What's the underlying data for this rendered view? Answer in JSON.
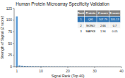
{
  "chart_data": {
    "type": "bar",
    "title": "Human Protein Microarray Specificity Validation",
    "x_label": "Signal Rank (Top 40)",
    "y_label": "Strength of Signal (Z score)",
    "x": [
      1,
      2,
      3,
      4,
      5,
      6,
      7,
      8,
      9,
      10,
      11,
      12,
      13,
      14,
      15,
      16,
      17,
      18,
      19,
      20,
      21,
      22,
      23,
      24,
      25,
      26,
      27,
      28,
      29,
      30,
      31,
      32,
      33,
      34,
      35,
      36,
      37,
      38,
      39,
      40
    ],
    "values": [
      107.79,
      2.66,
      1.96,
      1.5,
      1.3,
      1.1,
      1.0,
      0.9,
      0.85,
      0.8,
      0.75,
      0.7,
      0.65,
      0.6,
      0.58,
      0.55,
      0.52,
      0.5,
      0.48,
      0.46,
      0.44,
      0.42,
      0.4,
      0.38,
      0.36,
      0.34,
      0.32,
      0.3,
      0.28,
      0.26,
      0.24,
      0.22,
      0.2,
      0.18,
      0.16,
      0.14,
      0.12,
      0.1,
      0.08,
      0.06
    ],
    "color": "#5b9bd5",
    "xlim": [
      0,
      40
    ],
    "ylim": [
      0,
      125
    ],
    "xticks": [
      1,
      10,
      20,
      30,
      40
    ],
    "yticks": [
      0,
      25,
      50,
      75,
      100,
      125
    ],
    "grid": false,
    "table": {
      "columns": [
        "Rank",
        "Protein",
        "Z score",
        "S score"
      ],
      "rows": [
        [
          "1",
          "QKI",
          "107.79",
          "105.13"
        ],
        [
          "2",
          "NONO",
          "2.66",
          "0.7"
        ],
        [
          "3",
          "MAPK8",
          "1.96",
          "0.05"
        ]
      ],
      "header_color": "#7f7f7f",
      "highlight_color": "#2e75b6"
    }
  }
}
